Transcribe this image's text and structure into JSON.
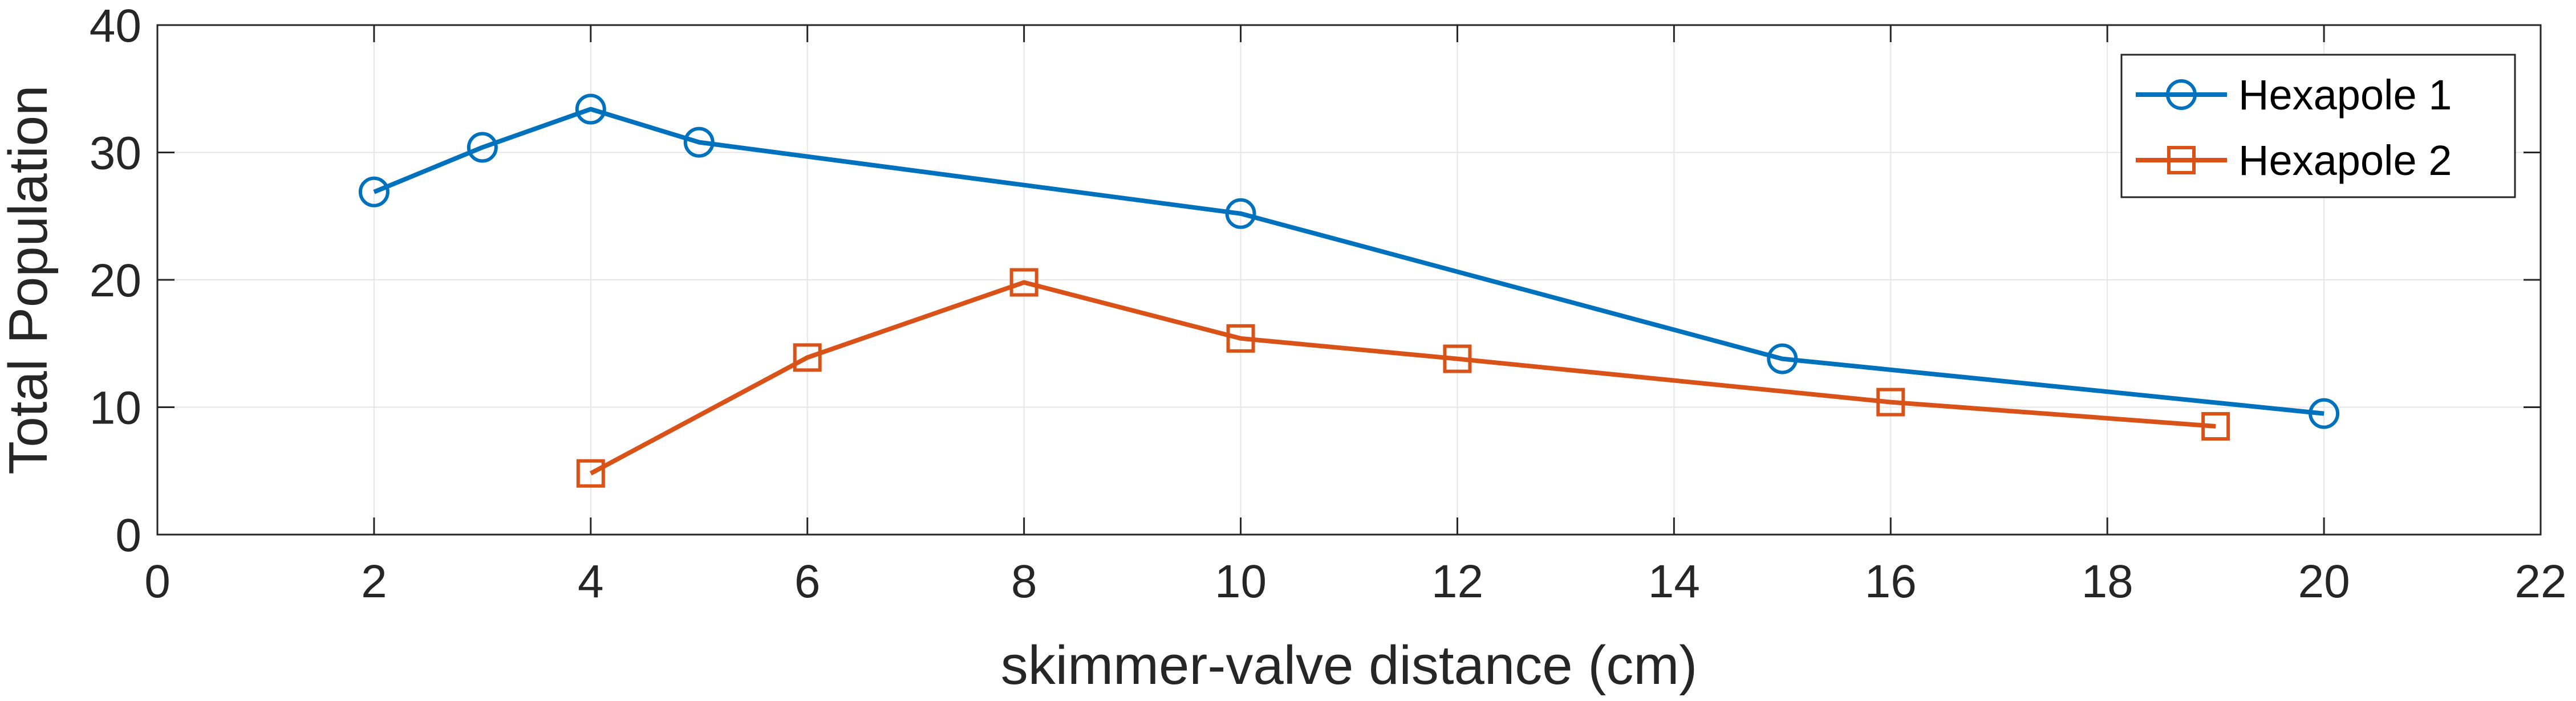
{
  "chart_data": {
    "type": "line",
    "xlabel": "skimmer-valve distance (cm)",
    "ylabel": "Total Population",
    "xlim": [
      0,
      22
    ],
    "ylim": [
      0,
      40
    ],
    "xticks": [
      0,
      2,
      4,
      6,
      8,
      10,
      12,
      14,
      16,
      18,
      20,
      22
    ],
    "yticks": [
      0,
      10,
      20,
      30,
      40
    ],
    "grid": true,
    "legend_position": "top-right",
    "series": [
      {
        "name": "Hexapole 1",
        "color": "#0072BD",
        "marker": "circle",
        "x": [
          2,
          3,
          4,
          5,
          10,
          15,
          20
        ],
        "y": [
          26.9,
          30.4,
          33.4,
          30.8,
          25.2,
          13.8,
          9.5
        ]
      },
      {
        "name": "Hexapole 2",
        "color": "#D95319",
        "marker": "square",
        "x": [
          4,
          6,
          8,
          10,
          12,
          16,
          19
        ],
        "y": [
          4.8,
          13.9,
          19.8,
          15.4,
          13.8,
          10.4,
          8.5
        ]
      }
    ]
  }
}
